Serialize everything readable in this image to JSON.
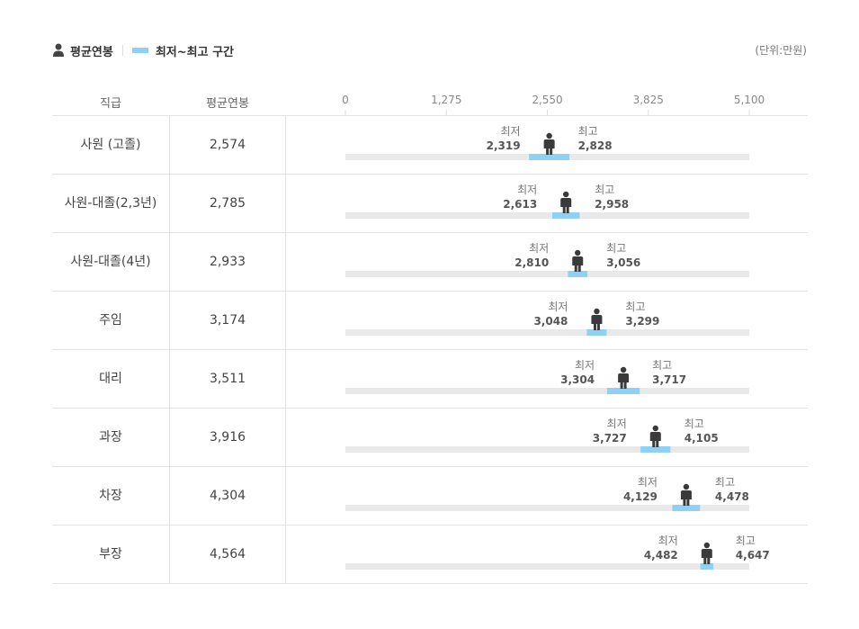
{
  "legend": {
    "avg_label": "평균연봉",
    "range_label": "최저~최고 구간",
    "icon": "person-icon",
    "range_color": "#8fd0f5"
  },
  "unit_label": "(단위:만원)",
  "table": {
    "headers": {
      "rank": "직급",
      "avg": "평균연봉"
    }
  },
  "labels": {
    "min": "최저",
    "max": "최고"
  },
  "chart_data": {
    "type": "range-bar",
    "x_ticks": [
      "0",
      "1,275",
      "2,550",
      "3,825",
      "5,100"
    ],
    "xlim": [
      0,
      5100
    ],
    "track_color": "#e9e9e9",
    "range_color": "#8fd0f5",
    "rows": [
      {
        "rank": "사원 (고졸)",
        "avg": 2574,
        "avg_label": "2,574",
        "min": 2319,
        "min_label": "2,319",
        "max": 2828,
        "max_label": "2,828"
      },
      {
        "rank": "사원-대졸(2,3년)",
        "avg": 2785,
        "avg_label": "2,785",
        "min": 2613,
        "min_label": "2,613",
        "max": 2958,
        "max_label": "2,958"
      },
      {
        "rank": "사원-대졸(4년)",
        "avg": 2933,
        "avg_label": "2,933",
        "min": 2810,
        "min_label": "2,810",
        "max": 3056,
        "max_label": "3,056"
      },
      {
        "rank": "주임",
        "avg": 3174,
        "avg_label": "3,174",
        "min": 3048,
        "min_label": "3,048",
        "max": 3299,
        "max_label": "3,299"
      },
      {
        "rank": "대리",
        "avg": 3511,
        "avg_label": "3,511",
        "min": 3304,
        "min_label": "3,304",
        "max": 3717,
        "max_label": "3,717"
      },
      {
        "rank": "과장",
        "avg": 3916,
        "avg_label": "3,916",
        "min": 3727,
        "min_label": "3,727",
        "max": 4105,
        "max_label": "4,105"
      },
      {
        "rank": "차장",
        "avg": 4304,
        "avg_label": "4,304",
        "min": 4129,
        "min_label": "4,129",
        "max": 4478,
        "max_label": "4,478"
      },
      {
        "rank": "부장",
        "avg": 4564,
        "avg_label": "4,564",
        "min": 4482,
        "min_label": "4,482",
        "max": 4647,
        "max_label": "4,647"
      }
    ]
  }
}
